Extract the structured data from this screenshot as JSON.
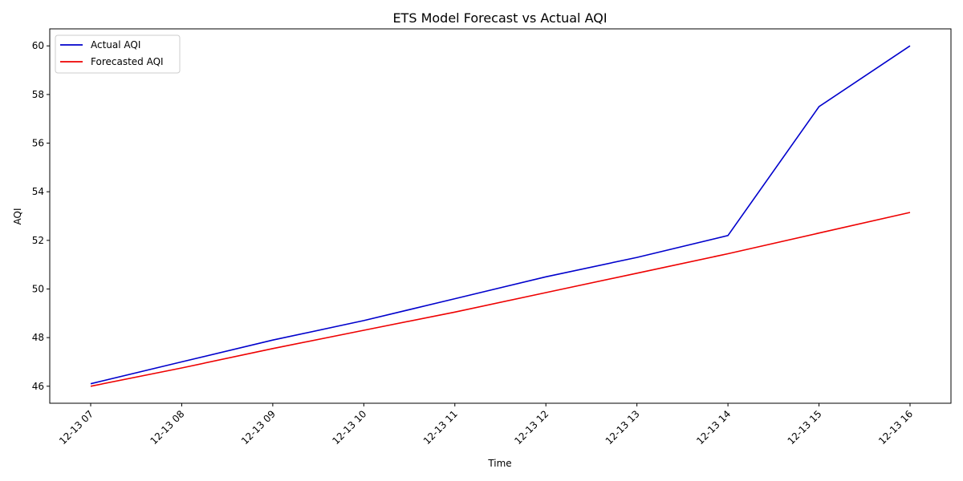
{
  "chart_data": {
    "type": "line",
    "title": "ETS Model Forecast vs Actual AQI",
    "xlabel": "Time",
    "ylabel": "AQI",
    "x": [
      "12-13 07",
      "12-13 08",
      "12-13 09",
      "12-13 10",
      "12-13 11",
      "12-13 12",
      "12-13 13",
      "12-13 14",
      "12-13 15",
      "12-13 16"
    ],
    "ylim": [
      45.3,
      60.7
    ],
    "yticks": [
      46,
      48,
      50,
      52,
      54,
      56,
      58,
      60
    ],
    "grid": false,
    "legend": "top-left",
    "series": [
      {
        "name": "Actual AQI",
        "color": "#0000cc",
        "values": [
          46.1,
          47.0,
          47.9,
          48.7,
          49.6,
          50.5,
          51.3,
          52.2,
          57.5,
          60.0
        ]
      },
      {
        "name": "Forecasted AQI",
        "color": "#ee0000",
        "values": [
          46.0,
          46.75,
          47.55,
          48.3,
          49.05,
          49.85,
          50.65,
          51.45,
          52.3,
          53.15
        ]
      }
    ]
  }
}
